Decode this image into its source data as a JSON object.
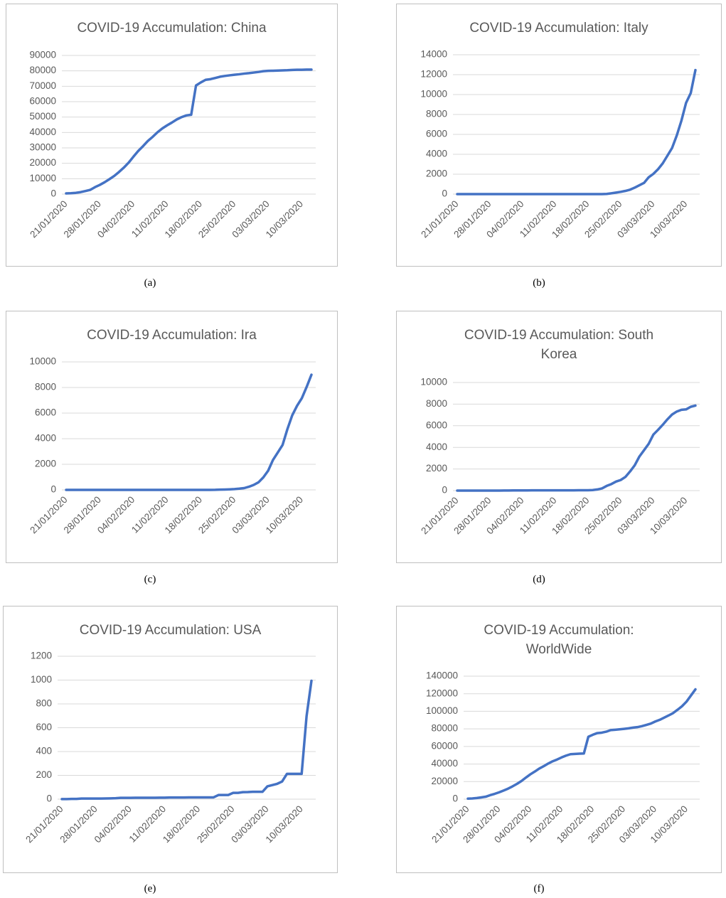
{
  "chart_data": [
    {
      "type": "line",
      "title": "COVID-19 Accumulation: China",
      "caption": "(a)",
      "color": "#4472c4",
      "grid": true,
      "categories": [
        "21/01/2020",
        null,
        null,
        null,
        null,
        null,
        null,
        "28/01/2020",
        null,
        null,
        null,
        null,
        null,
        null,
        "04/02/2020",
        null,
        null,
        null,
        null,
        null,
        null,
        "11/02/2020",
        null,
        null,
        null,
        null,
        null,
        null,
        "18/02/2020",
        null,
        null,
        null,
        null,
        null,
        null,
        "25/02/2020",
        null,
        null,
        null,
        null,
        null,
        null,
        "03/03/2020",
        null,
        null,
        null,
        null,
        null,
        null,
        "10/03/2020",
        null,
        null
      ],
      "values": [
        440,
        571,
        830,
        1287,
        1975,
        2744,
        4515,
        5974,
        7711,
        9692,
        11791,
        14380,
        17205,
        20438,
        24324,
        28018,
        31161,
        34546,
        37198,
        40171,
        42638,
        44653,
        46472,
        48467,
        49970,
        51091,
        51500,
        70500,
        72500,
        74200,
        74600,
        75400,
        76200,
        76700,
        77100,
        77500,
        77800,
        78200,
        78500,
        78900,
        79300,
        79800,
        80000,
        80100,
        80200,
        80300,
        80400,
        80600,
        80700,
        80700,
        80800,
        80800
      ],
      "ylim": [
        0,
        90000
      ],
      "yticks": [
        0,
        10000,
        20000,
        30000,
        40000,
        50000,
        60000,
        70000,
        80000,
        90000
      ]
    },
    {
      "type": "line",
      "title": "COVID-19 Accumulation: Italy",
      "caption": "(b)",
      "color": "#4472c4",
      "grid": true,
      "categories": [
        "21/01/2020",
        null,
        null,
        null,
        null,
        null,
        null,
        "28/01/2020",
        null,
        null,
        null,
        null,
        null,
        null,
        "04/02/2020",
        null,
        null,
        null,
        null,
        null,
        null,
        "11/02/2020",
        null,
        null,
        null,
        null,
        null,
        null,
        "18/02/2020",
        null,
        null,
        null,
        null,
        null,
        null,
        "25/02/2020",
        null,
        null,
        null,
        null,
        null,
        null,
        "03/03/2020",
        null,
        null,
        null,
        null,
        null,
        null,
        "10/03/2020",
        null,
        null
      ],
      "values": [
        0,
        0,
        0,
        0,
        0,
        0,
        0,
        0,
        0,
        0,
        3,
        3,
        3,
        3,
        3,
        3,
        3,
        3,
        3,
        3,
        3,
        3,
        3,
        3,
        3,
        3,
        3,
        3,
        3,
        3,
        3,
        3,
        20,
        79,
        150,
        227,
        320,
        445,
        650,
        888,
        1128,
        1694,
        2036,
        2502,
        3089,
        3858,
        4636,
        5883,
        7375,
        9172,
        10149,
        12462
      ],
      "ylim": [
        0,
        14000
      ],
      "yticks": [
        0,
        2000,
        4000,
        6000,
        8000,
        10000,
        12000,
        14000
      ]
    },
    {
      "type": "line",
      "title": "COVID-19 Accumulation: Ira",
      "caption": "(c)",
      "color": "#4472c4",
      "grid": true,
      "categories": [
        "21/01/2020",
        null,
        null,
        null,
        null,
        null,
        null,
        "28/01/2020",
        null,
        null,
        null,
        null,
        null,
        null,
        "04/02/2020",
        null,
        null,
        null,
        null,
        null,
        null,
        "11/02/2020",
        null,
        null,
        null,
        null,
        null,
        null,
        "18/02/2020",
        null,
        null,
        null,
        null,
        null,
        null,
        "25/02/2020",
        null,
        null,
        null,
        null,
        null,
        null,
        "03/03/2020",
        null,
        null,
        null,
        null,
        null,
        null,
        "10/03/2020",
        null,
        null
      ],
      "values": [
        0,
        0,
        0,
        0,
        0,
        0,
        0,
        0,
        0,
        0,
        0,
        0,
        0,
        0,
        0,
        0,
        0,
        0,
        0,
        0,
        0,
        0,
        0,
        0,
        0,
        0,
        0,
        0,
        0,
        0,
        2,
        5,
        18,
        28,
        43,
        61,
        95,
        139,
        245,
        388,
        593,
        978,
        1501,
        2336,
        2922,
        3513,
        4747,
        5823,
        6566,
        7161,
        8042,
        9000
      ],
      "ylim": [
        0,
        10000
      ],
      "yticks": [
        0,
        2000,
        4000,
        6000,
        8000,
        10000
      ]
    },
    {
      "type": "line",
      "title": "COVID-19 Accumulation: South Korea",
      "caption": "(d)",
      "color": "#4472c4",
      "grid": true,
      "categories": [
        "21/01/2020",
        null,
        null,
        null,
        null,
        null,
        null,
        "28/01/2020",
        null,
        null,
        null,
        null,
        null,
        null,
        "04/02/2020",
        null,
        null,
        null,
        null,
        null,
        null,
        "11/02/2020",
        null,
        null,
        null,
        null,
        null,
        null,
        "18/02/2020",
        null,
        null,
        null,
        null,
        null,
        null,
        "25/02/2020",
        null,
        null,
        null,
        null,
        null,
        null,
        "03/03/2020",
        null,
        null,
        null,
        null,
        null,
        null,
        "10/03/2020",
        null,
        null
      ],
      "values": [
        1,
        1,
        1,
        2,
        2,
        2,
        4,
        4,
        4,
        4,
        11,
        12,
        15,
        15,
        16,
        19,
        23,
        24,
        24,
        25,
        27,
        28,
        28,
        28,
        28,
        28,
        29,
        30,
        31,
        51,
        104,
        204,
        433,
        602,
        833,
        977,
        1261,
        1766,
        2337,
        3150,
        3736,
        4335,
        5186,
        5621,
        6088,
        6593,
        7041,
        7314,
        7478,
        7513,
        7755,
        7869
      ],
      "ylim": [
        0,
        10000
      ],
      "yticks": [
        0,
        2000,
        4000,
        6000,
        8000,
        10000
      ]
    },
    {
      "type": "line",
      "title": "COVID-19 Accumulation: USA",
      "caption": "(e)",
      "color": "#4472c4",
      "grid": true,
      "categories": [
        "21/01/2020",
        null,
        null,
        null,
        null,
        null,
        null,
        "28/01/2020",
        null,
        null,
        null,
        null,
        null,
        null,
        "04/02/2020",
        null,
        null,
        null,
        null,
        null,
        null,
        "11/02/2020",
        null,
        null,
        null,
        null,
        null,
        null,
        "18/02/2020",
        null,
        null,
        null,
        null,
        null,
        null,
        "25/02/2020",
        null,
        null,
        null,
        null,
        null,
        null,
        "03/03/2020",
        null,
        null,
        null,
        null,
        null,
        null,
        "10/03/2020",
        null,
        null
      ],
      "values": [
        1,
        1,
        2,
        2,
        5,
        5,
        5,
        5,
        5,
        6,
        7,
        8,
        11,
        11,
        11,
        12,
        12,
        12,
        12,
        12,
        13,
        13,
        14,
        14,
        14,
        14,
        15,
        15,
        15,
        15,
        15,
        15,
        35,
        35,
        35,
        53,
        53,
        59,
        60,
        62,
        62,
        62,
        108,
        118,
        129,
        148,
        213,
        213,
        213,
        213,
        696,
        994
      ],
      "ylim": [
        0,
        1200
      ],
      "yticks": [
        0,
        200,
        400,
        600,
        800,
        1000,
        1200
      ]
    },
    {
      "type": "line",
      "title": "COVID-19 Accumulation: WorldWide",
      "caption": "(f)",
      "color": "#4472c4",
      "grid": true,
      "categories": [
        "21/01/2020",
        null,
        null,
        null,
        null,
        null,
        null,
        "28/01/2020",
        null,
        null,
        null,
        null,
        null,
        null,
        "04/02/2020",
        null,
        null,
        null,
        null,
        null,
        null,
        "11/02/2020",
        null,
        null,
        null,
        null,
        null,
        null,
        "18/02/2020",
        null,
        null,
        null,
        null,
        null,
        null,
        "25/02/2020",
        null,
        null,
        null,
        null,
        null,
        null,
        "03/03/2020",
        null,
        null,
        null,
        null,
        null,
        null,
        "10/03/2020",
        null,
        null
      ],
      "values": [
        580,
        845,
        1317,
        2015,
        2800,
        4581,
        6058,
        7813,
        9823,
        11950,
        14553,
        17391,
        20630,
        24545,
        28266,
        31439,
        34876,
        37552,
        40553,
        43099,
        45134,
        47526,
        49553,
        51174,
        51500,
        51800,
        52000,
        71000,
        73300,
        75200,
        75700,
        76800,
        78600,
        79000,
        79500,
        80000,
        80600,
        81400,
        82000,
        83100,
        84500,
        86000,
        88400,
        90300,
        92800,
        95300,
        98000,
        101800,
        105800,
        111000,
        118000,
        125000
      ],
      "ylim": [
        0,
        140000
      ],
      "yticks": [
        0,
        20000,
        40000,
        60000,
        80000,
        100000,
        120000,
        140000
      ]
    }
  ]
}
